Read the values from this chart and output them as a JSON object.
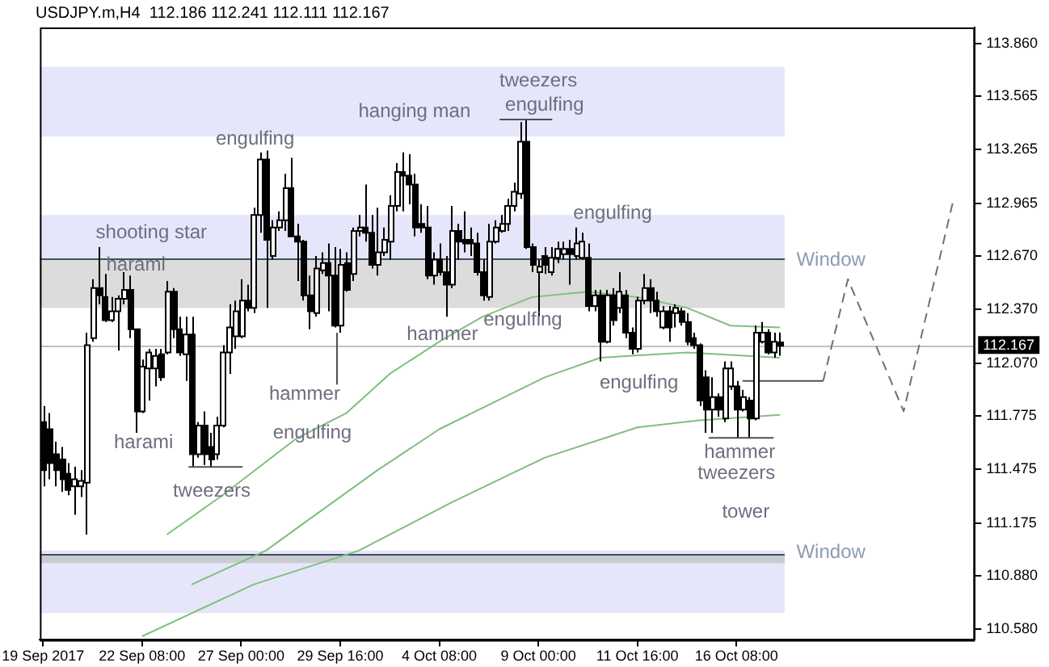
{
  "chart_data": {
    "type": "candlestick",
    "title": "USDJPY.m,H4  112.186 112.241 112.111 112.167",
    "categories": [
      "19 Sep 2017",
      null,
      null,
      null,
      null,
      null,
      null,
      null,
      null,
      null,
      null,
      null,
      null,
      null,
      null,
      null,
      "22 Sep 08:00",
      null,
      null,
      null,
      null,
      null,
      null,
      null,
      null,
      null,
      null,
      null,
      null,
      null,
      null,
      null,
      "27 Sep 00:00",
      null,
      null,
      null,
      null,
      null,
      null,
      null,
      null,
      null,
      null,
      null,
      null,
      null,
      null,
      null,
      "29 Sep 16:00",
      null,
      null,
      null,
      null,
      null,
      null,
      null,
      null,
      null,
      null,
      null,
      null,
      null,
      null,
      null,
      "4 Oct 08:00",
      null,
      null,
      null,
      null,
      null,
      null,
      null,
      null,
      null,
      null,
      null,
      null,
      null,
      null,
      null,
      "9 Oct 00:00",
      null,
      null,
      null,
      null,
      null,
      null,
      null,
      null,
      null,
      null,
      null,
      null,
      null,
      null,
      null,
      "11 Oct 16:00",
      null,
      null,
      null,
      null,
      null,
      null,
      null,
      null,
      null,
      null,
      null,
      null,
      null,
      null,
      null,
      "16 Oct 08:00",
      null,
      null,
      null,
      null,
      null,
      null,
      null,
      null,
      null,
      null,
      null,
      null,
      null,
      null,
      null,
      null,
      null,
      null,
      null,
      null,
      null,
      null,
      null,
      null,
      null,
      null,
      null,
      null,
      null,
      null,
      null,
      null,
      null,
      null,
      null,
      null,
      null,
      null
    ],
    "ohlc": [
      [
        111.74,
        111.83,
        111.38,
        111.47
      ],
      [
        111.7,
        111.79,
        111.42,
        111.51
      ],
      [
        111.56,
        111.63,
        111.38,
        111.47
      ],
      [
        111.53,
        111.6,
        111.35,
        111.42
      ],
      [
        111.45,
        111.51,
        111.33,
        111.36
      ],
      [
        111.38,
        111.49,
        111.22,
        111.42
      ],
      [
        111.38,
        111.47,
        111.32,
        111.41
      ],
      [
        111.4,
        112.24,
        111.11,
        112.17
      ],
      [
        112.21,
        112.54,
        112.19,
        112.49
      ],
      [
        112.49,
        112.72,
        112.4,
        112.45
      ],
      [
        112.44,
        112.57,
        112.3,
        112.31
      ],
      [
        112.31,
        112.44,
        112.3,
        112.36
      ],
      [
        112.36,
        112.45,
        112.14,
        112.43
      ],
      [
        112.43,
        112.58,
        112.4,
        112.48
      ],
      [
        112.48,
        112.56,
        112.21,
        112.26
      ],
      [
        112.26,
        112.26,
        111.68,
        111.8
      ],
      [
        111.8,
        112.09,
        111.79,
        112.05
      ],
      [
        112.04,
        112.15,
        111.86,
        112.13
      ],
      [
        112.04,
        112.15,
        111.94,
        112.11
      ],
      [
        112.12,
        112.15,
        111.97,
        111.99
      ],
      [
        112.13,
        112.53,
        112.12,
        112.47
      ],
      [
        112.47,
        112.49,
        112.21,
        112.26
      ],
      [
        112.26,
        112.33,
        112.11,
        112.13
      ],
      [
        112.12,
        112.33,
        111.97,
        112.23
      ],
      [
        112.23,
        112.33,
        111.49,
        111.56
      ],
      [
        111.56,
        111.74,
        111.54,
        111.72
      ],
      [
        111.72,
        111.8,
        111.5,
        111.56
      ],
      [
        111.6,
        111.68,
        111.49,
        111.53
      ],
      [
        111.56,
        111.77,
        111.53,
        111.72
      ],
      [
        111.72,
        112.17,
        111.71,
        112.13
      ],
      [
        112.13,
        112.4,
        112.01,
        112.27
      ],
      [
        112.22,
        112.42,
        112.15,
        112.36
      ],
      [
        112.22,
        112.54,
        112.21,
        112.42
      ],
      [
        112.42,
        112.51,
        112.36,
        112.38
      ],
      [
        112.38,
        112.94,
        112.35,
        112.9
      ],
      [
        112.9,
        113.25,
        112.8,
        113.21
      ],
      [
        113.21,
        113.26,
        112.38,
        112.76
      ],
      [
        112.67,
        112.87,
        112.65,
        112.83
      ],
      [
        112.83,
        112.92,
        112.81,
        112.87
      ],
      [
        112.87,
        113.13,
        112.81,
        113.05
      ],
      [
        113.05,
        113.22,
        112.78,
        112.78
      ],
      [
        112.78,
        112.85,
        112.53,
        112.75
      ],
      [
        112.75,
        112.76,
        112.42,
        112.45
      ],
      [
        112.45,
        112.56,
        112.26,
        112.36
      ],
      [
        112.35,
        112.67,
        112.33,
        112.6
      ],
      [
        112.59,
        112.69,
        112.57,
        112.63
      ],
      [
        112.63,
        112.74,
        112.36,
        112.56
      ],
      [
        112.56,
        112.72,
        112.27,
        112.28
      ],
      [
        112.28,
        112.71,
        112.24,
        112.62
      ],
      [
        112.63,
        112.69,
        112.47,
        112.48
      ],
      [
        112.57,
        112.83,
        112.53,
        112.81
      ],
      [
        112.81,
        112.9,
        112.78,
        112.83
      ],
      [
        112.83,
        113.07,
        112.75,
        112.8
      ],
      [
        112.8,
        112.9,
        112.6,
        112.62
      ],
      [
        112.62,
        112.94,
        112.56,
        112.69
      ],
      [
        112.69,
        112.83,
        112.67,
        112.76
      ],
      [
        112.75,
        113.01,
        112.65,
        112.95
      ],
      [
        112.95,
        113.19,
        112.92,
        113.14
      ],
      [
        113.14,
        113.25,
        112.92,
        113.12
      ],
      [
        113.12,
        113.24,
        112.96,
        113.07
      ],
      [
        113.07,
        113.13,
        112.78,
        112.83
      ],
      [
        112.85,
        112.96,
        112.8,
        112.83
      ],
      [
        112.83,
        112.95,
        112.54,
        112.56
      ],
      [
        112.56,
        112.69,
        112.51,
        112.65
      ],
      [
        112.65,
        112.74,
        112.56,
        112.58
      ],
      [
        112.58,
        112.67,
        112.33,
        112.51
      ],
      [
        112.51,
        112.95,
        112.49,
        112.81
      ],
      [
        112.81,
        112.85,
        112.65,
        112.75
      ],
      [
        112.76,
        112.92,
        112.69,
        112.74
      ],
      [
        112.76,
        112.83,
        112.67,
        112.74
      ],
      [
        112.74,
        112.8,
        112.56,
        112.58
      ],
      [
        112.58,
        112.65,
        112.42,
        112.45
      ],
      [
        112.44,
        112.85,
        112.42,
        112.75
      ],
      [
        112.75,
        112.87,
        112.74,
        112.83
      ],
      [
        112.81,
        112.9,
        112.8,
        112.85
      ],
      [
        112.85,
        112.99,
        112.81,
        112.95
      ],
      [
        112.95,
        113.08,
        112.92,
        113.03
      ],
      [
        113.02,
        113.42,
        112.99,
        113.31
      ],
      [
        113.31,
        113.43,
        112.71,
        112.72
      ],
      [
        112.72,
        112.74,
        112.58,
        112.62
      ],
      [
        112.58,
        112.65,
        112.33,
        112.61
      ],
      [
        112.67,
        112.72,
        112.57,
        112.62
      ],
      [
        112.58,
        112.72,
        112.56,
        112.66
      ],
      [
        112.66,
        112.75,
        112.63,
        112.71
      ],
      [
        112.68,
        112.75,
        112.65,
        112.71
      ],
      [
        112.71,
        112.76,
        112.51,
        112.68
      ],
      [
        112.67,
        112.83,
        112.65,
        112.74
      ],
      [
        112.66,
        112.8,
        112.65,
        112.75
      ],
      [
        112.66,
        112.74,
        112.36,
        112.39
      ],
      [
        112.39,
        112.48,
        112.36,
        112.45
      ],
      [
        112.45,
        112.48,
        112.08,
        112.19
      ],
      [
        112.19,
        112.48,
        112.18,
        112.45
      ],
      [
        112.45,
        112.49,
        112.28,
        112.31
      ],
      [
        112.38,
        112.58,
        112.35,
        112.47
      ],
      [
        112.45,
        112.48,
        112.21,
        112.24
      ],
      [
        112.24,
        112.27,
        112.12,
        112.15
      ],
      [
        112.15,
        112.44,
        112.13,
        112.42
      ],
      [
        112.42,
        112.57,
        112.4,
        112.49
      ],
      [
        112.49,
        112.54,
        112.35,
        112.42
      ],
      [
        112.42,
        112.47,
        112.33,
        112.36
      ],
      [
        112.27,
        112.39,
        112.26,
        112.36
      ],
      [
        112.36,
        112.39,
        112.19,
        112.27
      ],
      [
        112.35,
        112.4,
        112.27,
        112.38
      ],
      [
        112.36,
        112.38,
        112.28,
        112.3
      ],
      [
        112.3,
        112.35,
        112.17,
        112.19
      ],
      [
        112.21,
        112.24,
        112.15,
        112.17
      ],
      [
        112.17,
        112.18,
        111.83,
        111.86
      ],
      [
        111.99,
        112.03,
        111.68,
        111.81
      ],
      [
        111.81,
        111.99,
        111.68,
        111.88
      ],
      [
        111.88,
        111.9,
        111.77,
        111.81
      ],
      [
        111.76,
        112.08,
        111.74,
        112.04
      ],
      [
        111.94,
        112.08,
        111.92,
        112.04
      ],
      [
        111.94,
        111.97,
        111.65,
        111.81
      ],
      [
        111.81,
        111.92,
        111.8,
        111.88
      ],
      [
        111.86,
        111.88,
        111.65,
        111.76
      ],
      [
        111.76,
        112.28,
        111.75,
        112.24
      ],
      [
        112.19,
        112.3,
        112.18,
        112.24
      ],
      [
        112.24,
        112.26,
        112.12,
        112.13
      ],
      [
        112.13,
        112.24,
        112.1,
        112.19
      ],
      [
        112.186,
        112.241,
        112.111,
        112.167
      ],
      null,
      null,
      null,
      null,
      null,
      null,
      null,
      null,
      null,
      null,
      null,
      null,
      null,
      null,
      null,
      null,
      null,
      null,
      null,
      null,
      null,
      null,
      null,
      null,
      null,
      null,
      null,
      null,
      null,
      null,
      null
    ],
    "series": [
      {
        "type": "line",
        "color": "#7fbf7f",
        "values": [
          null,
          null,
          null,
          null,
          null,
          null,
          null,
          null,
          null,
          null,
          null,
          null,
          null,
          null,
          null,
          null,
          null,
          null,
          null,
          null,
          111.11,
          null,
          null,
          null,
          null,
          null,
          null,
          null,
          null,
          111.33,
          null,
          null,
          null,
          null,
          null,
          null,
          null,
          null,
          null,
          null,
          null,
          111.65,
          null,
          null,
          null,
          null,
          null,
          null,
          null,
          111.79,
          null,
          null,
          null,
          null,
          null,
          null,
          112.01,
          null,
          null,
          null,
          null,
          null,
          null,
          null,
          112.19,
          null,
          null,
          null,
          null,
          null,
          null,
          112.33,
          null,
          null,
          null,
          null,
          null,
          null,
          null,
          112.44,
          null,
          null,
          null,
          null,
          null,
          null,
          null,
          null,
          112.47,
          null,
          null,
          null,
          null,
          null,
          null,
          null,
          112.44,
          null,
          null,
          null,
          null,
          null,
          null,
          null,
          112.38,
          null,
          null,
          null,
          null,
          null,
          null,
          112.28,
          null,
          null,
          null,
          null,
          null,
          null,
          null,
          112.27,
          null,
          null,
          null,
          null,
          null,
          null,
          null,
          null,
          null,
          null,
          null,
          null,
          null,
          null,
          null,
          null,
          null,
          null,
          null,
          null,
          null,
          null,
          null,
          null,
          null,
          null,
          null,
          null,
          null,
          null,
          null
        ]
      },
      {
        "type": "line",
        "color": "#7fbf7f",
        "values": [
          null,
          null,
          null,
          null,
          null,
          null,
          null,
          null,
          null,
          null,
          null,
          null,
          null,
          null,
          null,
          null,
          null,
          null,
          null,
          null,
          null,
          null,
          null,
          null,
          110.83,
          null,
          null,
          null,
          null,
          null,
          null,
          null,
          null,
          null,
          null,
          null,
          111.02,
          null,
          null,
          null,
          null,
          null,
          111.17,
          null,
          null,
          null,
          null,
          null,
          null,
          null,
          null,
          null,
          null,
          null,
          111.47,
          null,
          null,
          null,
          null,
          null,
          null,
          null,
          null,
          null,
          111.7,
          null,
          null,
          null,
          null,
          null,
          null,
          null,
          null,
          null,
          null,
          null,
          null,
          null,
          null,
          null,
          null,
          111.99,
          null,
          null,
          null,
          null,
          null,
          null,
          null,
          null,
          112.1,
          null,
          null,
          null,
          null,
          null,
          null,
          null,
          null,
          null,
          null,
          null,
          null,
          null,
          112.13,
          null,
          null,
          null,
          null,
          null,
          null,
          null,
          null,
          null,
          null,
          null,
          null,
          null,
          null,
          112.1,
          null,
          null,
          null,
          null,
          null,
          null,
          null,
          null,
          null,
          null,
          null,
          null,
          null,
          null,
          null,
          null,
          null,
          null,
          null,
          null,
          null,
          null,
          null,
          null,
          null,
          null,
          null,
          null,
          null,
          null,
          null
        ]
      },
      {
        "type": "line",
        "color": "#7fbf7f",
        "values": [
          null,
          null,
          null,
          null,
          null,
          null,
          null,
          null,
          null,
          null,
          null,
          null,
          null,
          null,
          null,
          null,
          110.54,
          null,
          null,
          null,
          null,
          null,
          null,
          null,
          null,
          null,
          null,
          null,
          null,
          null,
          null,
          null,
          null,
          null,
          110.83,
          null,
          null,
          null,
          null,
          null,
          null,
          null,
          null,
          null,
          null,
          null,
          null,
          null,
          null,
          null,
          null,
          111.02,
          null,
          null,
          null,
          null,
          null,
          null,
          null,
          null,
          null,
          null,
          null,
          null,
          null,
          null,
          111.29,
          null,
          null,
          null,
          null,
          null,
          null,
          null,
          null,
          null,
          null,
          null,
          null,
          null,
          null,
          111.54,
          null,
          null,
          null,
          null,
          null,
          null,
          null,
          null,
          null,
          null,
          null,
          null,
          null,
          null,
          111.71,
          null,
          null,
          null,
          null,
          null,
          null,
          null,
          null,
          null,
          111.75,
          null,
          null,
          null,
          null,
          null,
          null,
          null,
          null,
          null,
          null,
          null,
          null,
          111.78,
          null,
          null,
          null,
          null,
          null,
          null,
          null,
          null,
          null,
          null,
          null,
          null,
          null,
          null,
          null,
          null,
          null,
          null,
          null,
          null,
          null,
          null,
          null,
          null,
          null,
          null,
          null,
          null,
          null,
          null,
          null
        ]
      },
      {
        "type": "line",
        "color": "#505050",
        "values": [
          null,
          null,
          null,
          null,
          null,
          null,
          null,
          null,
          null,
          null,
          null,
          null,
          null,
          null,
          null,
          null,
          null,
          null,
          null,
          null,
          null,
          null,
          null,
          null,
          null,
          null,
          null,
          null,
          null,
          null,
          null,
          null,
          null,
          null,
          null,
          null,
          null,
          null,
          null,
          null,
          null,
          null,
          null,
          null,
          null,
          null,
          null,
          null,
          null,
          null,
          null,
          null,
          null,
          null,
          null,
          null,
          null,
          null,
          null,
          null,
          null,
          null,
          null,
          null,
          null,
          null,
          null,
          null,
          null,
          null,
          null,
          null,
          null,
          null,
          null,
          null,
          null,
          null,
          null,
          null,
          null,
          null,
          null,
          null,
          null,
          null,
          null,
          null,
          null,
          null,
          null,
          null,
          null,
          null,
          null,
          null,
          null,
          null,
          null,
          null,
          null,
          null,
          null,
          null,
          null,
          null,
          null,
          null,
          null,
          null,
          null,
          null,
          null,
          111.97,
          null,
          null,
          null,
          null,
          null,
          null,
          null,
          null,
          null,
          null,
          null,
          null,
          111.97,
          null,
          null,
          null,
          null,
          null,
          null,
          null,
          null,
          null,
          null,
          null,
          null,
          null,
          null,
          null,
          null,
          null,
          null,
          null,
          null,
          null,
          null,
          null,
          null
        ]
      },
      {
        "type": "line",
        "color": "#707070",
        "line_style": "dashed",
        "values": [
          null,
          null,
          null,
          null,
          null,
          null,
          null,
          null,
          null,
          null,
          null,
          null,
          null,
          null,
          null,
          null,
          null,
          null,
          null,
          null,
          null,
          null,
          null,
          null,
          null,
          null,
          null,
          null,
          null,
          null,
          null,
          null,
          null,
          null,
          null,
          null,
          null,
          null,
          null,
          null,
          null,
          null,
          null,
          null,
          null,
          null,
          null,
          null,
          null,
          null,
          null,
          null,
          null,
          null,
          null,
          null,
          null,
          null,
          null,
          null,
          null,
          null,
          null,
          null,
          null,
          null,
          null,
          null,
          null,
          null,
          null,
          null,
          null,
          null,
          null,
          null,
          null,
          null,
          null,
          null,
          null,
          null,
          null,
          null,
          null,
          null,
          null,
          null,
          null,
          null,
          null,
          null,
          null,
          null,
          null,
          null,
          null,
          null,
          null,
          null,
          null,
          null,
          null,
          null,
          null,
          null,
          null,
          null,
          null,
          null,
          null,
          null,
          null,
          null,
          null,
          null,
          null,
          null,
          null,
          null,
          null,
          null,
          null,
          null,
          null,
          null,
          111.97,
          null,
          null,
          null,
          112.54,
          null,
          null,
          null,
          null,
          null,
          null,
          null,
          null,
          111.8,
          null,
          null,
          null,
          null,
          null,
          null,
          null,
          112.98,
          null,
          null,
          null
        ]
      }
    ],
    "ylim": [
      110.52,
      113.95
    ],
    "yticks": [
      {
        "value": 113.86,
        "label": "113.860"
      },
      {
        "value": 113.565,
        "label": "113.565"
      },
      {
        "value": 113.265,
        "label": "113.265"
      },
      {
        "value": 112.965,
        "label": "112.965"
      },
      {
        "value": 112.67,
        "label": "112.670"
      },
      {
        "value": 112.37,
        "label": "112.370"
      },
      {
        "value": 112.07,
        "label": "112.070"
      },
      {
        "value": 111.775,
        "label": "111.775"
      },
      {
        "value": 111.475,
        "label": "111.475"
      },
      {
        "value": 111.175,
        "label": "111.175"
      },
      {
        "value": 110.88,
        "label": "110.880"
      },
      {
        "value": 110.58,
        "label": "110.580"
      }
    ],
    "bands": [
      {
        "axis": "y",
        "from": 113.34,
        "to": 113.73,
        "color": "#e6e6fa"
      },
      {
        "axis": "y",
        "from": 112.38,
        "to": 112.9,
        "color": "#e6e6fa"
      },
      {
        "axis": "y",
        "from": 112.38,
        "to": 112.66,
        "color": "#dcdcdc"
      },
      {
        "axis": "y",
        "from": 110.67,
        "to": 111.02,
        "color": "#e6e6fa"
      },
      {
        "axis": "y",
        "from": 110.95,
        "to": 111.0,
        "color": "#c8ccd0"
      }
    ],
    "ref_lines": [
      {
        "axis": "y",
        "value": 112.66,
        "color": "#3c5064"
      },
      {
        "axis": "y",
        "value": 111.0,
        "color": "#3c5064"
      },
      {
        "axis": "y",
        "value": 112.167,
        "label": "112.167",
        "color": "#c0c0c0"
      }
    ],
    "annotations": [
      "shooting star",
      "harami",
      "harami",
      "tweezers",
      "engulfing",
      {
        "text": "hammer",
        "y": 112.24
      },
      "engulfing",
      "hanging man",
      "tweezers",
      "engulfing",
      "hammer",
      "engulfing",
      "engulfing",
      "engulfing",
      "hammer",
      "tweezers",
      "tower",
      "Window",
      "Window"
    ]
  }
}
